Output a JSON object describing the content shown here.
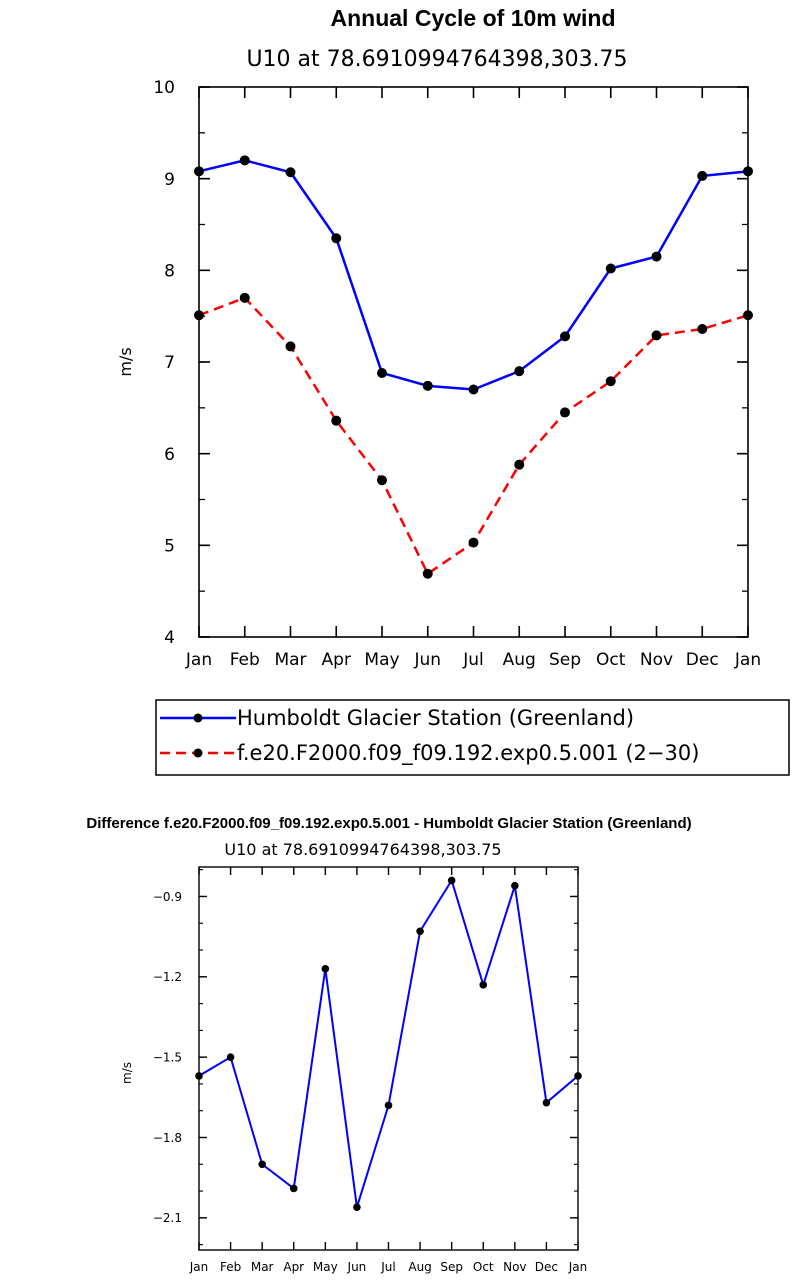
{
  "chart_data": [
    {
      "type": "line",
      "title": "Annual Cycle of 10m wind",
      "subtitle": "U10 at 78.6910994764398,303.75",
      "xlabel": "",
      "ylabel": "m/s",
      "categories": [
        "Jan",
        "Feb",
        "Mar",
        "Apr",
        "May",
        "Jun",
        "Jul",
        "Aug",
        "Sep",
        "Oct",
        "Nov",
        "Dec",
        "Jan"
      ],
      "ylim": [
        4,
        10
      ],
      "yticks": [
        "4",
        "5",
        "6",
        "7",
        "8",
        "9",
        "10"
      ],
      "legend_position": "bottom",
      "series": [
        {
          "name": "Humboldt Glacier Station (Greenland)",
          "color": "#0000ff",
          "dash": "solid",
          "values": [
            9.08,
            9.2,
            9.07,
            8.35,
            6.88,
            6.74,
            6.7,
            6.9,
            7.28,
            8.02,
            8.15,
            9.03,
            9.08
          ]
        },
        {
          "name": "f.e20.F2000.f09_f09.192.exp0.5.001 (2−30)",
          "color": "#ff0000",
          "dash": "dashed",
          "values": [
            7.51,
            7.7,
            7.17,
            6.36,
            5.71,
            4.69,
            5.03,
            5.88,
            6.45,
            6.79,
            7.29,
            7.36,
            7.51
          ]
        }
      ]
    },
    {
      "type": "line",
      "title": "Difference f.e20.F2000.f09_f09.192.exp0.5.001 - Humboldt Glacier Station (Greenland)",
      "subtitle": "U10 at 78.6910994764398,303.75",
      "xlabel": "",
      "ylabel": "m/s",
      "categories": [
        "Jan",
        "Feb",
        "Mar",
        "Apr",
        "May",
        "Jun",
        "Jul",
        "Aug",
        "Sep",
        "Oct",
        "Nov",
        "Dec",
        "Jan"
      ],
      "ylim": [
        -2.22,
        -0.79
      ],
      "yticks": [
        "-2.1",
        "-1.8",
        "-1.5",
        "-1.2",
        "-0.9"
      ],
      "series": [
        {
          "name": "",
          "color": "#0000ff",
          "dash": "solid",
          "values": [
            -1.57,
            -1.5,
            -1.9,
            -1.99,
            -1.17,
            -2.06,
            -1.68,
            -1.03,
            -0.84,
            -1.23,
            -0.86,
            -1.67,
            -1.57
          ]
        }
      ]
    }
  ]
}
